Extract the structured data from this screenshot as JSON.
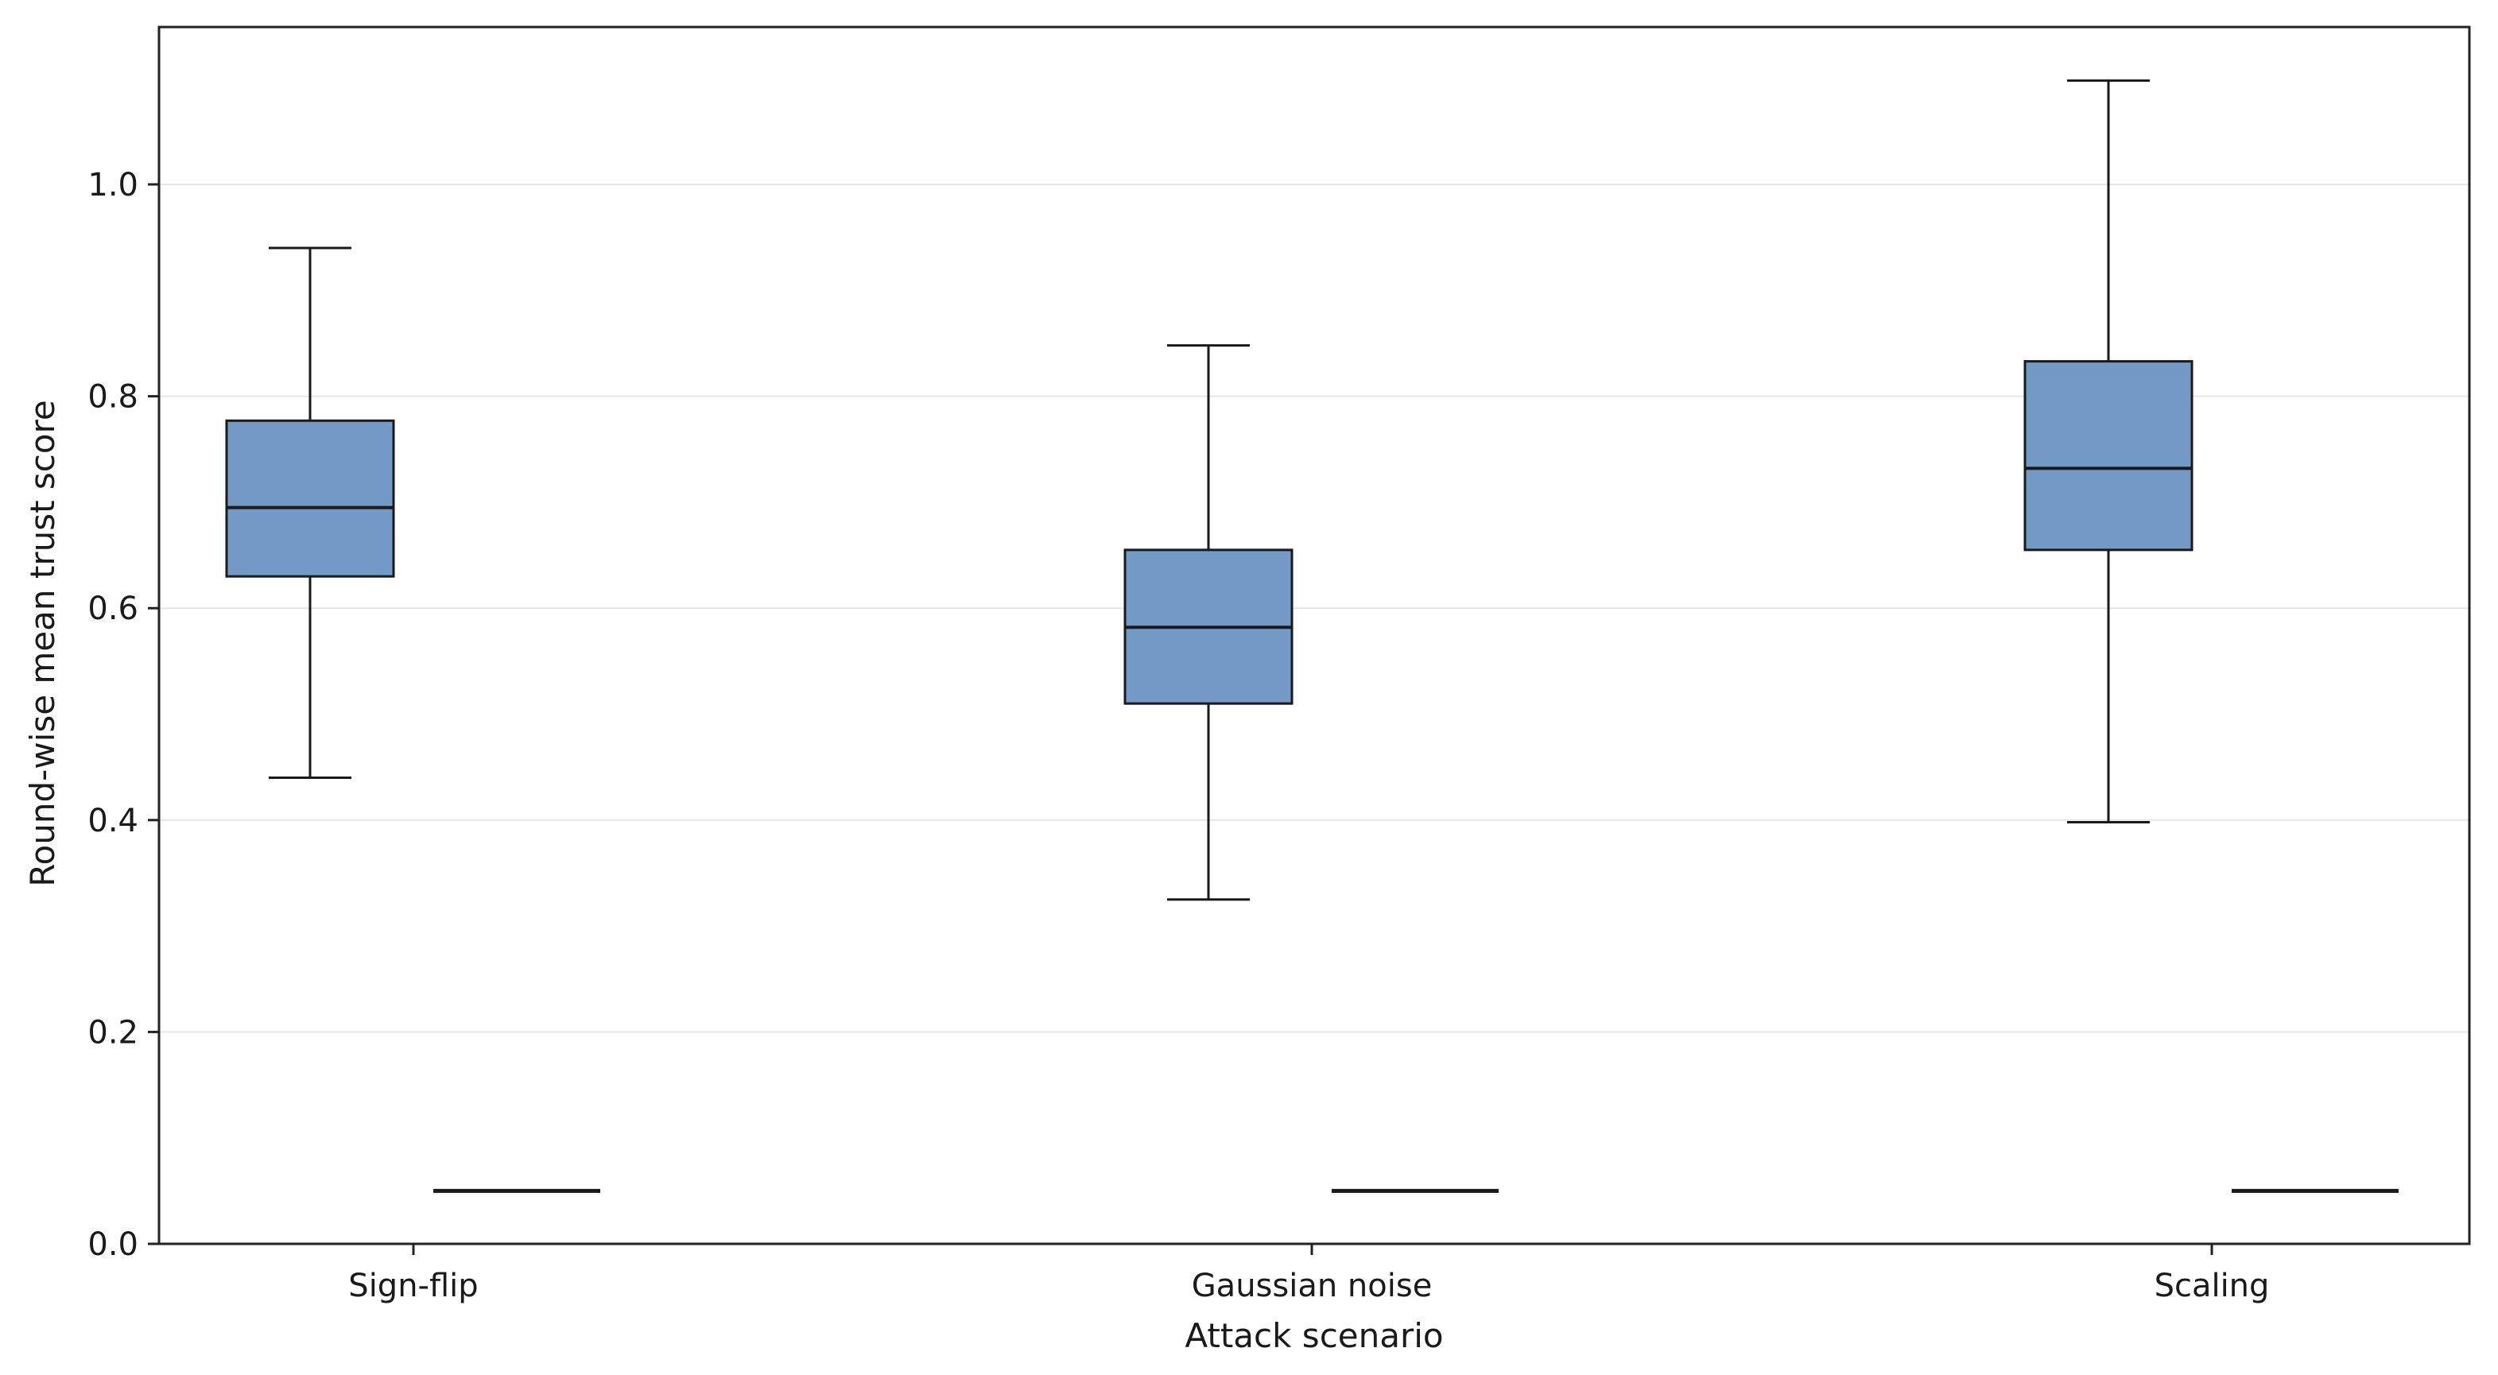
{
  "chart_data": {
    "type": "box",
    "xlabel": "Attack scenario",
    "ylabel": "Round-wise mean trust score",
    "ylim": [
      0.0,
      1.15
    ],
    "yticks": [
      0.0,
      0.2,
      0.4,
      0.6,
      0.8,
      1.0
    ],
    "ytick_labels": [
      "0.0",
      "0.2",
      "0.4",
      "0.6",
      "0.8",
      "1.0"
    ],
    "grid": "horizontal",
    "categories": [
      "Sign-flip",
      "Gaussian noise",
      "Scaling"
    ],
    "series": [
      {
        "role": "primary-box",
        "color": "#7399c6",
        "boxes": [
          {
            "category": "Sign-flip",
            "whislo": 0.44,
            "q1": 0.63,
            "med": 0.695,
            "q3": 0.777,
            "whishi": 0.94
          },
          {
            "category": "Gaussian noise",
            "whislo": 0.325,
            "q1": 0.51,
            "med": 0.582,
            "q3": 0.655,
            "whishi": 0.848
          },
          {
            "category": "Scaling",
            "whislo": 0.398,
            "q1": 0.655,
            "med": 0.732,
            "q3": 0.833,
            "whishi": 1.098
          }
        ]
      },
      {
        "role": "secondary-box",
        "color": "#7399c6",
        "boxes": [
          {
            "category": "Sign-flip",
            "whislo": 0.05,
            "q1": 0.05,
            "med": 0.05,
            "q3": 0.05,
            "whishi": 0.05
          },
          {
            "category": "Gaussian noise",
            "whislo": 0.05,
            "q1": 0.05,
            "med": 0.05,
            "q3": 0.05,
            "whishi": 0.05
          },
          {
            "category": "Scaling",
            "whislo": 0.05,
            "q1": 0.05,
            "med": 0.05,
            "q3": 0.05,
            "whishi": 0.05
          }
        ]
      }
    ]
  }
}
